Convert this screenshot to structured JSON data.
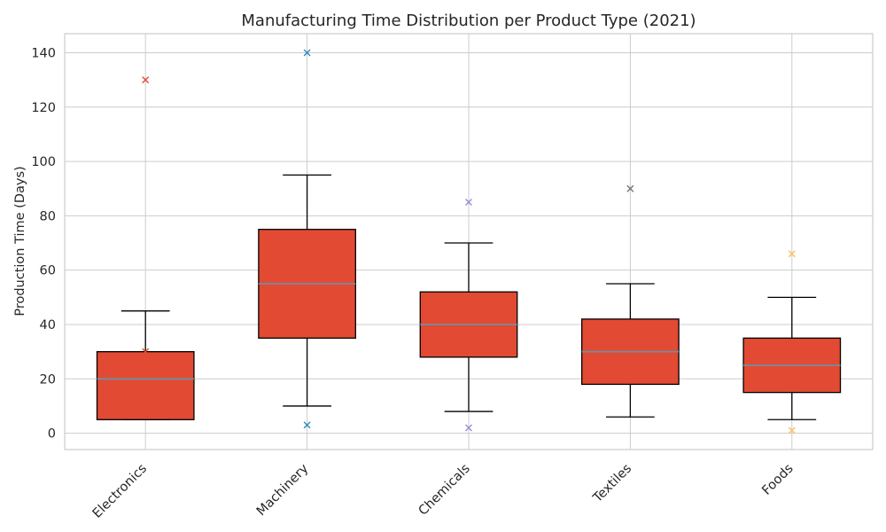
{
  "chart_data": {
    "type": "box",
    "title": "Manufacturing Time Distribution per Product Type (2021)",
    "xlabel": "",
    "ylabel": "Production Time (Days)",
    "ylim": [
      -6,
      147
    ],
    "yticks": [
      0,
      20,
      40,
      60,
      80,
      100,
      120,
      140
    ],
    "grid": true,
    "box_color": "#e24a33",
    "median_color": "#6f8fa3",
    "categories": [
      "Electronics",
      "Machinery",
      "Chemicals",
      "Textiles",
      "Foods"
    ],
    "boxes": [
      {
        "category": "Electronics",
        "whisker_low": 5,
        "q1": 5,
        "median": 20,
        "q3": 30,
        "whisker_high": 45,
        "outliers": [
          30,
          130
        ],
        "outlier_color": "#e24a33"
      },
      {
        "category": "Machinery",
        "whisker_low": 10,
        "q1": 35,
        "median": 55,
        "q3": 75,
        "whisker_high": 95,
        "outliers": [
          3,
          140
        ],
        "outlier_color": "#348abd"
      },
      {
        "category": "Chemicals",
        "whisker_low": 8,
        "q1": 28,
        "median": 40,
        "q3": 52,
        "whisker_high": 70,
        "outliers": [
          2,
          85
        ],
        "outlier_color": "#988ed5"
      },
      {
        "category": "Textiles",
        "whisker_low": 6,
        "q1": 18,
        "median": 30,
        "q3": 42,
        "whisker_high": 55,
        "outliers": [
          90
        ],
        "outlier_color": "#777777"
      },
      {
        "category": "Foods",
        "whisker_low": 5,
        "q1": 15,
        "median": 25,
        "q3": 35,
        "whisker_high": 50,
        "outliers": [
          1,
          66
        ],
        "outlier_color": "#fbc15e"
      }
    ]
  }
}
